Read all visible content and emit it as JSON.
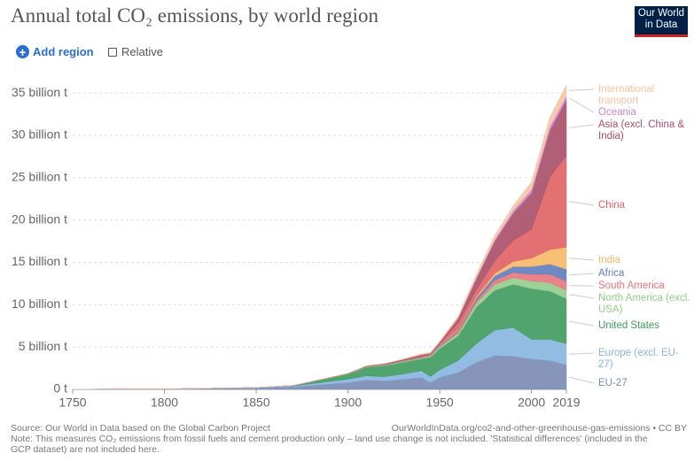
{
  "header": {
    "title": "Annual total CO₂ emissions, by world region",
    "logo": "Our World in Data",
    "add_region": "Add region",
    "relative": "Relative"
  },
  "chart_data": {
    "type": "stacked-area",
    "x": [
      1750,
      1800,
      1850,
      1870,
      1900,
      1910,
      1920,
      1930,
      1940,
      1945,
      1950,
      1960,
      1970,
      1980,
      1990,
      2000,
      2010,
      2019
    ],
    "xlim": [
      1750,
      2019
    ],
    "xticks": [
      1750,
      1800,
      1850,
      1900,
      1950,
      2000,
      2019
    ],
    "ylim": [
      0,
      37
    ],
    "yticks": [
      {
        "value": 0,
        "label": "0 t"
      },
      {
        "value": 5,
        "label": "5 billion t"
      },
      {
        "value": 10,
        "label": "10 billion t"
      },
      {
        "value": 15,
        "label": "15 billion t"
      },
      {
        "value": 20,
        "label": "20 billion t"
      },
      {
        "value": 25,
        "label": "25 billion t"
      },
      {
        "value": 30,
        "label": "30 billion t"
      },
      {
        "value": 35,
        "label": "35 billion t"
      }
    ],
    "grid": true,
    "series": [
      {
        "name": "EU-27",
        "color": "#7a8ab4",
        "values": [
          0.01,
          0.03,
          0.15,
          0.3,
          0.8,
          1.1,
          1.0,
          1.2,
          1.4,
          0.8,
          1.4,
          2.0,
          3.2,
          4.0,
          3.9,
          3.6,
          3.4,
          2.9
        ]
      },
      {
        "name": "Europe (excl. EU-27)",
        "color": "#86b5df",
        "values": [
          0.01,
          0.02,
          0.05,
          0.1,
          0.4,
          0.5,
          0.5,
          0.6,
          0.8,
          0.7,
          0.9,
          1.4,
          2.2,
          3.0,
          3.4,
          2.3,
          2.5,
          2.5
        ]
      },
      {
        "name": "United States",
        "color": "#3e9a5e",
        "values": [
          0,
          0,
          0.01,
          0.05,
          0.6,
          1.0,
          1.3,
          1.4,
          1.4,
          2.3,
          2.5,
          2.9,
          4.3,
          4.7,
          5.1,
          6.0,
          5.7,
          5.3
        ]
      },
      {
        "name": "North America (excl. USA)",
        "color": "#93cc8a",
        "values": [
          0,
          0,
          0,
          0.005,
          0.03,
          0.06,
          0.08,
          0.1,
          0.1,
          0.15,
          0.2,
          0.3,
          0.5,
          0.7,
          0.8,
          0.9,
          1.0,
          1.0
        ]
      },
      {
        "name": "South America",
        "color": "#e8747c",
        "values": [
          0,
          0,
          0,
          0,
          0.01,
          0.02,
          0.02,
          0.04,
          0.05,
          0.07,
          0.1,
          0.2,
          0.3,
          0.5,
          0.6,
          0.8,
          1.0,
          1.1
        ]
      },
      {
        "name": "Africa",
        "color": "#5f7dbd",
        "values": [
          0,
          0,
          0,
          0,
          0.01,
          0.02,
          0.03,
          0.04,
          0.05,
          0.06,
          0.1,
          0.15,
          0.3,
          0.5,
          0.7,
          0.9,
          1.2,
          1.4
        ]
      },
      {
        "name": "India",
        "color": "#f7b867",
        "values": [
          0,
          0,
          0,
          0,
          0.01,
          0.02,
          0.03,
          0.03,
          0.05,
          0.05,
          0.06,
          0.12,
          0.2,
          0.3,
          0.6,
          1.0,
          1.7,
          2.6
        ]
      },
      {
        "name": "China",
        "color": "#e06264",
        "values": [
          0,
          0,
          0,
          0,
          0,
          0,
          0,
          0.01,
          0.02,
          0.02,
          0.08,
          0.8,
          0.8,
          1.5,
          2.5,
          3.4,
          8.6,
          10.8
        ]
      },
      {
        "name": "Asia (excl. China & India)",
        "color": "#a74e68",
        "values": [
          0,
          0,
          0,
          0,
          0.02,
          0.04,
          0.06,
          0.1,
          0.2,
          0.1,
          0.2,
          0.5,
          1.3,
          2.3,
          3.2,
          4.3,
          5.5,
          6.6
        ]
      },
      {
        "name": "Oceania",
        "color": "#c688d2",
        "values": [
          0,
          0,
          0,
          0,
          0.01,
          0.01,
          0.02,
          0.02,
          0.03,
          0.03,
          0.04,
          0.06,
          0.1,
          0.2,
          0.3,
          0.4,
          0.45,
          0.45
        ]
      },
      {
        "name": "International transport",
        "color": "#f6c5a2",
        "values": [
          0,
          0,
          0,
          0,
          0,
          0.01,
          0.02,
          0.05,
          0.1,
          0.1,
          0.15,
          0.2,
          0.4,
          0.5,
          0.6,
          0.9,
          1.1,
          1.3
        ]
      }
    ]
  },
  "footer": {
    "source": "Source: Our World in Data based on the Global Carbon Project",
    "url": "OurWorldInData.org/co2-and-other-greenhouse-gas-emissions • CC BY",
    "note": "Note: This measures CO₂ emissions from fossil fuels and cement production only – land use change is not included. 'Statistical differences' (included in the GCP dataset) are not included here."
  }
}
